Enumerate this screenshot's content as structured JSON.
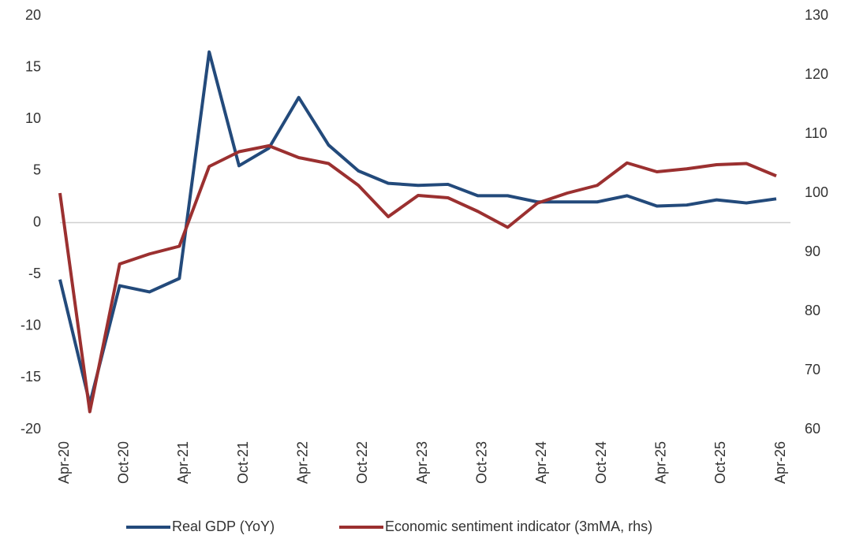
{
  "chart_data": {
    "type": "line",
    "categories": [
      "Apr-20",
      null,
      "Oct-20",
      null,
      "Apr-21",
      null,
      "Oct-21",
      null,
      "Apr-22",
      null,
      "Oct-22",
      null,
      "Apr-23",
      null,
      "Oct-23",
      null,
      "Apr-24",
      null,
      "Oct-24",
      null,
      "Apr-25",
      null,
      "Oct-25",
      null,
      "Apr-26"
    ],
    "series": [
      {
        "name": "Real GDP (YoY)",
        "color": "#234a7b",
        "values": [
          -5.5,
          -17.5,
          -6.1,
          -6.7,
          -5.4,
          16.5,
          5.5,
          7.2,
          12.1,
          7.5,
          5.0,
          3.8,
          3.6,
          3.7,
          2.6,
          2.6,
          2.0,
          2.0,
          2.0,
          2.6,
          1.6,
          1.7,
          2.2,
          1.9,
          2.3
        ]
      },
      {
        "name": "Economic sentiment indicator (3mMA, rhs)",
        "color": "#9b3030",
        "axis": "y2",
        "values": [
          100,
          63,
          88,
          89.7,
          91,
          104.5,
          107,
          108,
          106,
          105,
          101.3,
          96,
          99.6,
          99.2,
          96.9,
          94.2,
          98.3,
          100,
          101.3,
          105.1,
          103.6,
          104.1,
          104.8,
          105,
          102.9
        ]
      }
    ],
    "ylim": [
      -20,
      20
    ],
    "yticks": [
      -20,
      -15,
      -10,
      -5,
      0,
      5,
      10,
      15,
      20
    ],
    "y2lim": [
      60,
      130
    ],
    "y2ticks": [
      60,
      70,
      80,
      90,
      100,
      110,
      120,
      130
    ],
    "zero_line": true,
    "legend": "bottom"
  }
}
